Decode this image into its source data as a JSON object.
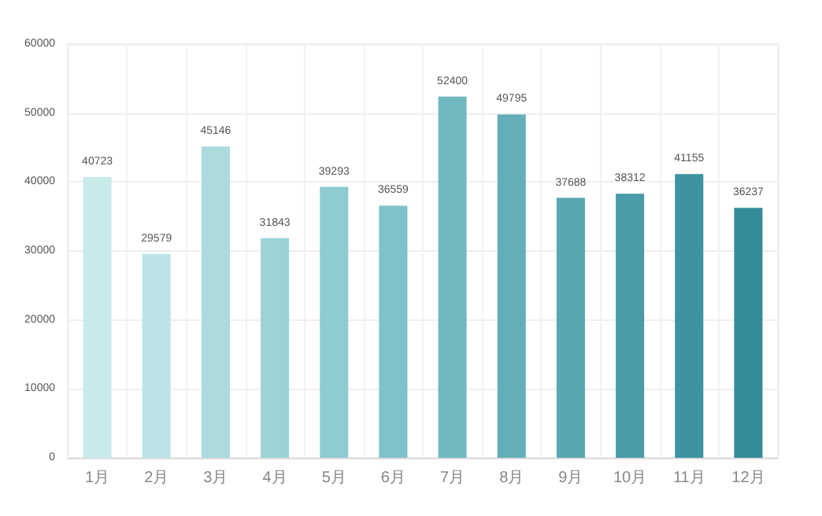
{
  "chart_data": {
    "type": "bar",
    "categories": [
      "1月",
      "2月",
      "3月",
      "4月",
      "5月",
      "6月",
      "7月",
      "8月",
      "9月",
      "10月",
      "11月",
      "12月"
    ],
    "values": [
      40723,
      29579,
      45146,
      31843,
      39293,
      36559,
      52400,
      49795,
      37688,
      38312,
      41155,
      36237
    ],
    "colors": [
      "#c9eaeb",
      "#bce4e6",
      "#acdadd",
      "#9dd2d7",
      "#8ecbd1",
      "#80c2c9",
      "#70b9bf",
      "#64aeb8",
      "#58a6b0",
      "#4a9ba8",
      "#3f93a1",
      "#368b99"
    ],
    "ylim": [
      0,
      60000
    ],
    "yticks": [
      0,
      10000,
      20000,
      30000,
      40000,
      50000,
      60000
    ],
    "grid": true,
    "data_labels": true
  }
}
